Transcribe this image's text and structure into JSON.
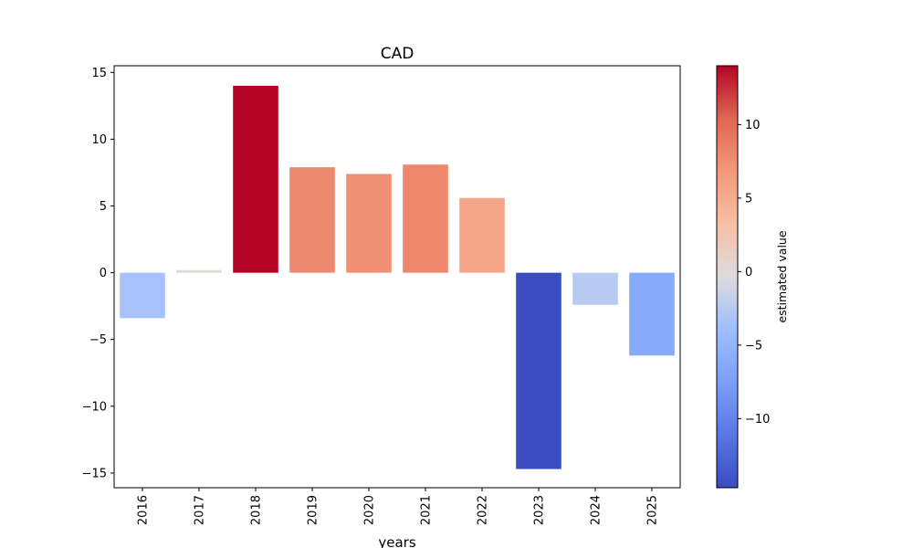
{
  "chart_data": {
    "type": "bar",
    "title": "CAD",
    "xlabel": "years",
    "ylabel": "",
    "categories": [
      "2016",
      "2017",
      "2018",
      "2019",
      "2020",
      "2021",
      "2022",
      "2023",
      "2024",
      "2025"
    ],
    "values": [
      -3.4,
      0.2,
      14.0,
      7.9,
      7.4,
      8.1,
      5.6,
      -14.7,
      -2.4,
      -6.2
    ],
    "ylim": [
      -16.1,
      15.5
    ],
    "yticks": [
      -15,
      -10,
      -5,
      0,
      5,
      10,
      15
    ],
    "ytick_labels": [
      "−15",
      "−10",
      "−5",
      "0",
      "5",
      "10",
      "15"
    ],
    "colorbar": {
      "label": "estimated value",
      "colormap": "coolwarm",
      "range": [
        -14.7,
        14.0
      ],
      "ticks": [
        -10,
        -5,
        0,
        5,
        10
      ],
      "tick_labels": [
        "−10",
        "−5",
        "0",
        "5",
        "10"
      ]
    },
    "grid": false,
    "legend": "none"
  }
}
